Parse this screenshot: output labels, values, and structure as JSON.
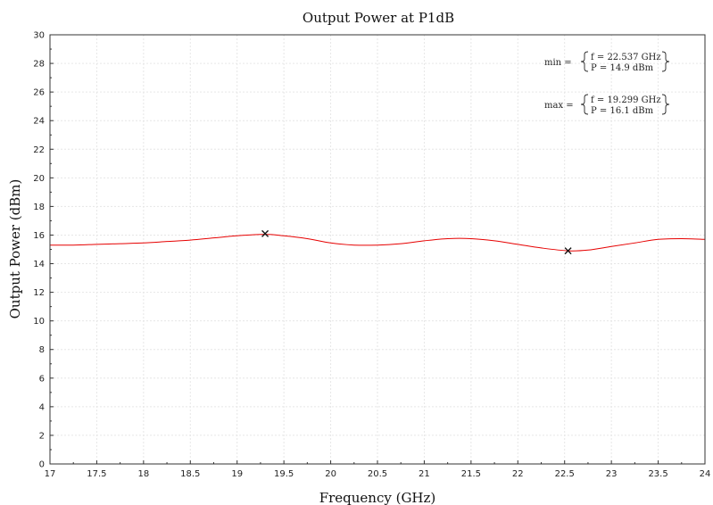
{
  "chart_data": {
    "type": "line",
    "title": "Output Power at P1dB",
    "xlabel": "Frequency (GHz)",
    "ylabel": "Output Power (dBm)",
    "xlim": [
      17,
      24
    ],
    "ylim": [
      0,
      30
    ],
    "xticks": [
      "17",
      "17.5",
      "18",
      "18.5",
      "19",
      "19.5",
      "20",
      "20.5",
      "21",
      "21.5",
      "22",
      "22.5",
      "23",
      "23.5",
      "24"
    ],
    "yticks": [
      "0",
      "2",
      "4",
      "6",
      "8",
      "10",
      "12",
      "14",
      "16",
      "18",
      "20",
      "22",
      "24",
      "26",
      "28",
      "30"
    ],
    "grid": true,
    "series": [
      {
        "color": "#e60000",
        "x": [
          17.0,
          17.25,
          17.5,
          17.75,
          18.0,
          18.25,
          18.5,
          18.75,
          19.0,
          19.3,
          19.5,
          19.75,
          20.0,
          20.25,
          20.5,
          20.75,
          21.0,
          21.25,
          21.5,
          21.75,
          22.0,
          22.25,
          22.537,
          22.75,
          23.0,
          23.25,
          23.5,
          23.75,
          24.0
        ],
        "y": [
          15.3,
          15.3,
          15.35,
          15.4,
          15.45,
          15.55,
          15.65,
          15.8,
          15.95,
          16.05,
          15.95,
          15.75,
          15.45,
          15.3,
          15.3,
          15.4,
          15.6,
          15.75,
          15.75,
          15.6,
          15.35,
          15.1,
          14.9,
          14.95,
          15.2,
          15.45,
          15.7,
          15.75,
          15.7
        ]
      }
    ],
    "markers": [
      {
        "x": 19.299,
        "y": 16.1
      },
      {
        "x": 22.537,
        "y": 14.9
      }
    ],
    "annotations": {
      "min": {
        "label": "min =",
        "f": "f = 22.537 GHz",
        "p": "P = 14.9 dBm"
      },
      "max": {
        "label": "max =",
        "f": "f = 19.299 GHz",
        "p": "P = 16.1 dBm"
      }
    }
  }
}
